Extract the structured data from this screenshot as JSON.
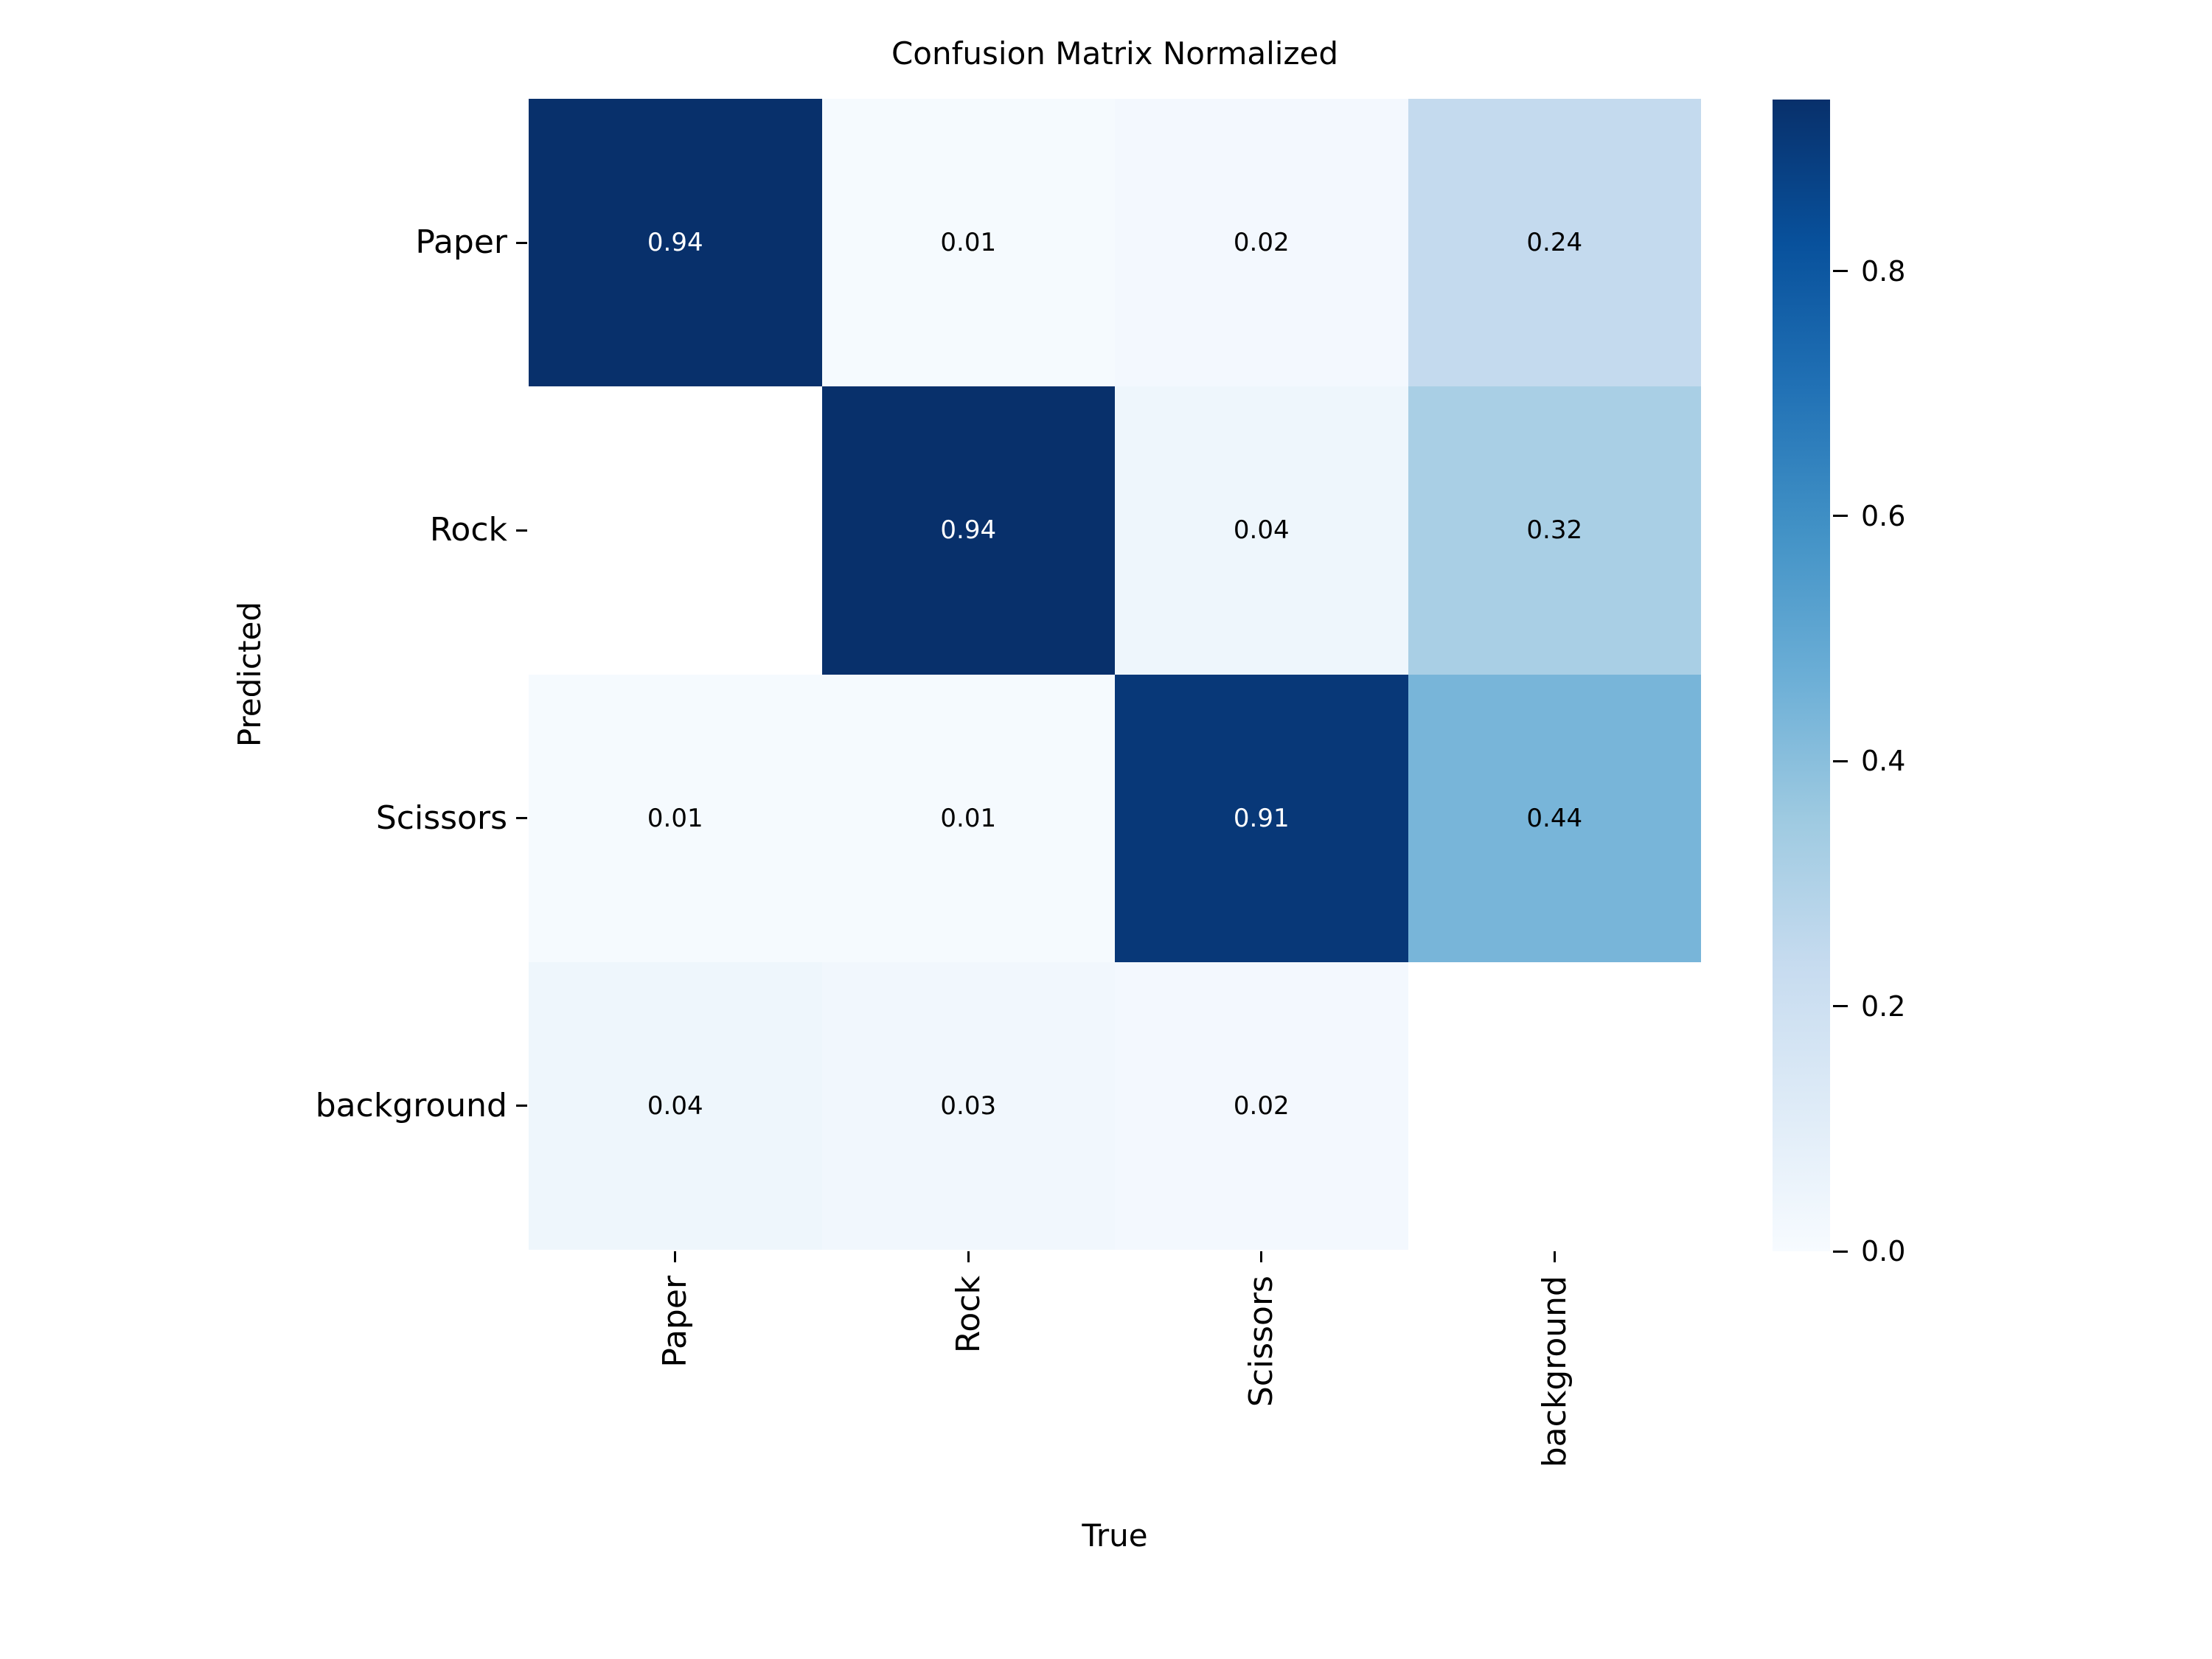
{
  "figure": {
    "background_color": "#ffffff",
    "text_color": "#000000"
  },
  "chart_data": {
    "type": "heatmap",
    "title": "Confusion Matrix Normalized",
    "xlabel": "True",
    "ylabel": "Predicted",
    "x_categories": [
      "Paper",
      "Rock",
      "Scissors",
      "background"
    ],
    "y_categories": [
      "Paper",
      "Rock",
      "Scissors",
      "background"
    ],
    "values": [
      [
        0.94,
        0.01,
        0.02,
        0.24
      ],
      [
        null,
        0.94,
        0.04,
        0.32
      ],
      [
        0.01,
        0.01,
        0.91,
        0.44
      ],
      [
        0.04,
        0.03,
        0.02,
        null
      ]
    ],
    "annotations": [
      [
        "0.94",
        "0.01",
        "0.02",
        "0.24"
      ],
      [
        "",
        "0.94",
        "0.04",
        "0.32"
      ],
      [
        "0.01",
        "0.01",
        "0.91",
        "0.44"
      ],
      [
        "0.04",
        "0.03",
        "0.02",
        ""
      ]
    ],
    "vmin": 0.0,
    "vmax": 0.94,
    "grid": false,
    "colormap": "Blues",
    "colormap_stops": [
      {
        "pos": 0.0,
        "color": "#f7fbff"
      },
      {
        "pos": 0.125,
        "color": "#deebf7"
      },
      {
        "pos": 0.25,
        "color": "#c6dbef"
      },
      {
        "pos": 0.375,
        "color": "#9ecae1"
      },
      {
        "pos": 0.5,
        "color": "#6baed6"
      },
      {
        "pos": 0.625,
        "color": "#4292c6"
      },
      {
        "pos": 0.75,
        "color": "#2171b5"
      },
      {
        "pos": 0.875,
        "color": "#08519c"
      },
      {
        "pos": 1.0,
        "color": "#08306b"
      }
    ],
    "nan_cell_color": "#ffffff",
    "annotation_color_dark_cells": "#ffffff",
    "annotation_color_light_cells": "#000000",
    "colorbar": {
      "position": "right",
      "tick_labels": [
        "0.0",
        "0.2",
        "0.4",
        "0.6",
        "0.8"
      ],
      "tick_values": [
        0.0,
        0.2,
        0.4,
        0.6,
        0.8
      ]
    }
  }
}
